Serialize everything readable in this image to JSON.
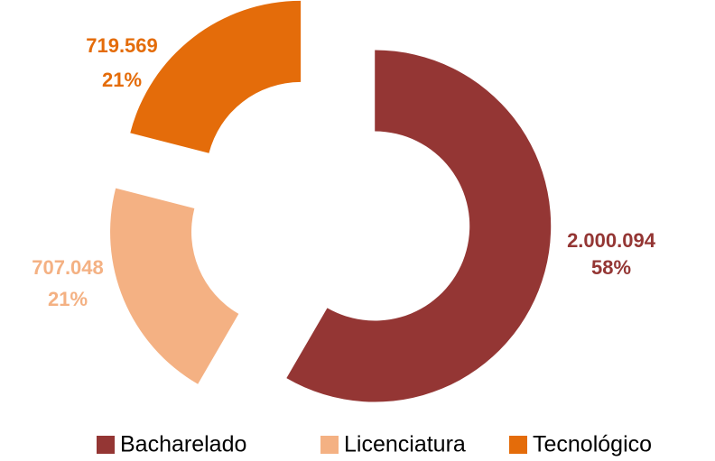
{
  "chart_data": {
    "type": "donut",
    "categories": [
      "Bacharelado",
      "Licenciatura",
      "Tecnológico"
    ],
    "values": [
      2000094,
      707048,
      719569
    ],
    "value_labels": [
      "2.000.094",
      "707.048",
      "719.569"
    ],
    "percentages": [
      58,
      21,
      21
    ],
    "percent_labels": [
      "58%",
      "21%",
      "21%"
    ],
    "colors": [
      "#943634",
      "#f4b183",
      "#e46c0a"
    ],
    "legend": "bottom"
  }
}
